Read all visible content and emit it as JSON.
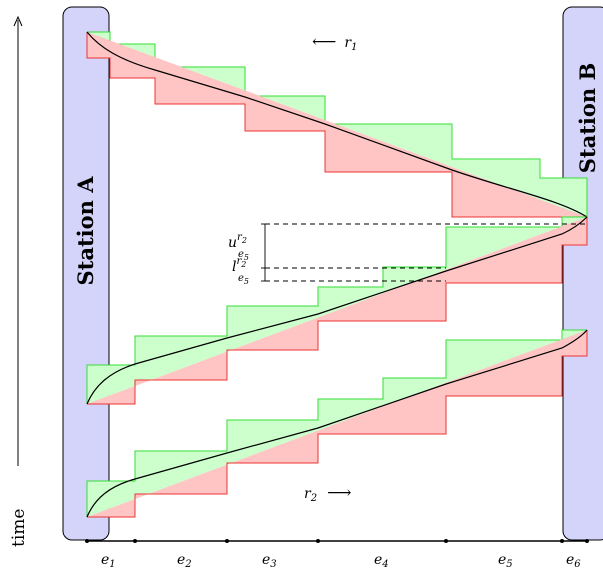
{
  "colors": {
    "station_fill": "#d4d4fb",
    "upper_fill": "#ccffcc",
    "upper_stroke": "#33dd33",
    "lower_fill": "#ffc4c4",
    "lower_stroke": "#ee3333",
    "line": "#000000"
  },
  "stations": {
    "a": "Station A",
    "b": "Station B"
  },
  "axis": {
    "time_label": "time",
    "time_arrow": "———→"
  },
  "routes": {
    "r1": {
      "arrow": "⟵",
      "symbol": "r",
      "sub": "1"
    },
    "r2": {
      "arrow": "⟶",
      "symbol": "r",
      "sub": "2"
    }
  },
  "bound_labels": {
    "upper": {
      "symbol": "u",
      "sup": "r",
      "supsub": "2",
      "sub": "e",
      "subsub": "5"
    },
    "lower": {
      "symbol": "l",
      "sup": "r",
      "supsub": "2",
      "sub": "e",
      "subsub": "5"
    }
  },
  "edges": [
    {
      "symbol": "e",
      "sub": "1"
    },
    {
      "symbol": "e",
      "sub": "2"
    },
    {
      "symbol": "e",
      "sub": "3"
    },
    {
      "symbol": "e",
      "sub": "4"
    },
    {
      "symbol": "e",
      "sub": "5"
    },
    {
      "symbol": "e",
      "sub": "6"
    }
  ]
}
